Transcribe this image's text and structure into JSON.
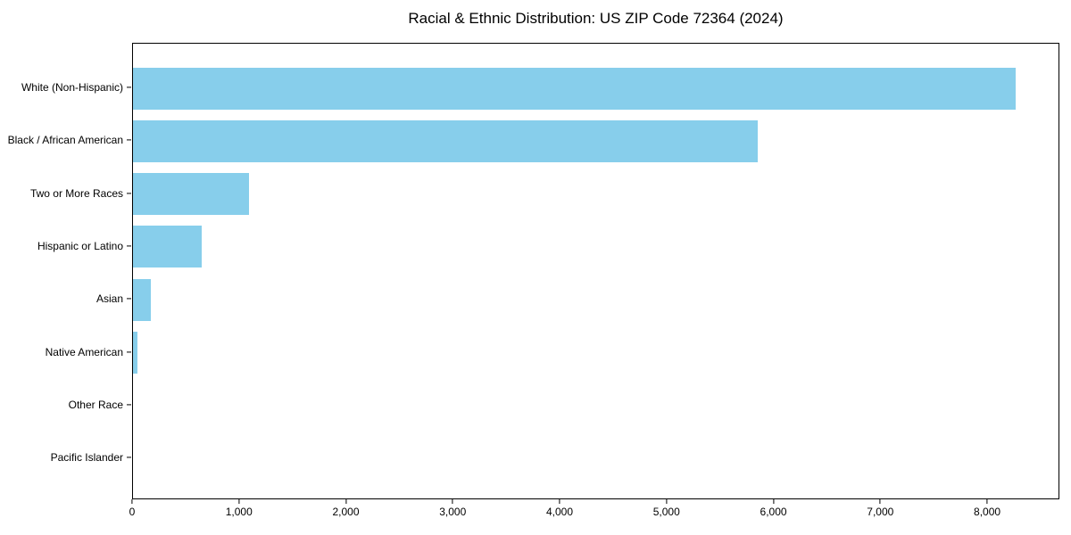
{
  "title": "Racial & Ethnic Distribution: US ZIP Code 72364 (2024)",
  "chart_data": {
    "type": "bar",
    "orientation": "horizontal",
    "title": "Racial & Ethnic Distribution: US ZIP Code 72364 (2024)",
    "xlabel": "",
    "ylabel": "",
    "categories": [
      "White (Non-Hispanic)",
      "Black / African American",
      "Two or More Races",
      "Hispanic or Latino",
      "Asian",
      "Native American",
      "Other Race",
      "Pacific Islander"
    ],
    "values": [
      8255,
      5845,
      1085,
      645,
      170,
      40,
      0,
      0
    ],
    "xlim": [
      0,
      8676
    ],
    "xticks": [
      0,
      1000,
      2000,
      3000,
      4000,
      5000,
      6000,
      7000,
      8000
    ],
    "xtick_labels": [
      "0",
      "1,000",
      "2,000",
      "3,000",
      "4,000",
      "5,000",
      "6,000",
      "7,000",
      "8,000"
    ],
    "bar_color": "#87CEEB",
    "grid": false,
    "legend": null,
    "background_color": "#ffffff",
    "spine_color": "#000000"
  }
}
